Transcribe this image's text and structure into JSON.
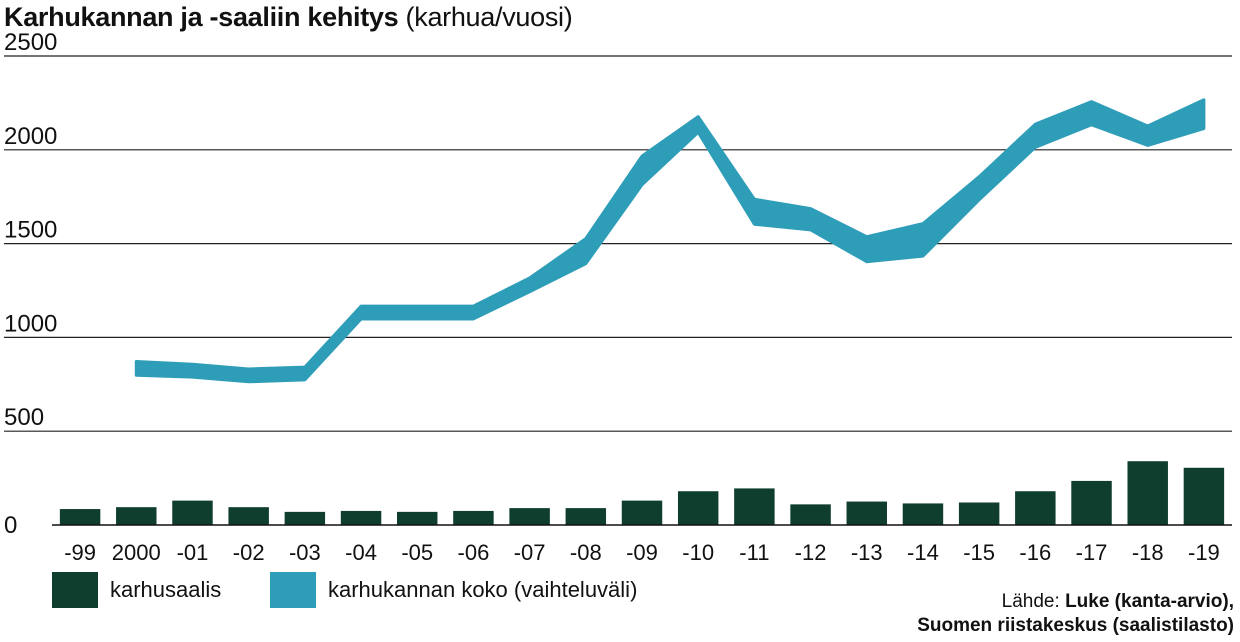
{
  "title": "Karhukannan ja -saaliin kehitys",
  "title_unit": "(karhua/vuosi)",
  "legend": {
    "bars_label": "karhusaalis",
    "band_label": "karhukannan koko (vaihteluväli)"
  },
  "source": {
    "prefix": "Lähde:",
    "line1_bold": "Luke (kanta-arvio),",
    "line2_bold": "Suomen riistakeskus (saalistilasto)"
  },
  "colors": {
    "bars": "#0f3d2e",
    "band": "#2e9db8",
    "grid": "#222222"
  },
  "chart_data": {
    "type": "bar",
    "categories": [
      "-99",
      "2000",
      "-01",
      "-02",
      "-03",
      "-04",
      "-05",
      "-06",
      "-07",
      "-08",
      "-09",
      "-10",
      "-11",
      "-12",
      "-13",
      "-14",
      "-15",
      "-16",
      "-17",
      "-18",
      "-19"
    ],
    "ylim": [
      0,
      2500
    ],
    "yticks": [
      0,
      500,
      1000,
      1500,
      2000,
      2500
    ],
    "grid": true,
    "series": [
      {
        "name": "karhusaalis",
        "type": "bar",
        "values": [
          85,
          95,
          130,
          95,
          70,
          75,
          70,
          75,
          90,
          90,
          130,
          180,
          195,
          110,
          125,
          115,
          120,
          180,
          235,
          340,
          305
        ]
      },
      {
        "name": "karhukannan koko (vaihteluväli)",
        "type": "area",
        "low": [
          null,
          825,
          815,
          790,
          800,
          1125,
          1125,
          1125,
          1270,
          1420,
          1840,
          2120,
          1630,
          1600,
          1430,
          1460,
          1760,
          2040,
          2160,
          2050,
          2140
        ],
        "high": [
          null,
          845,
          830,
          805,
          815,
          1140,
          1140,
          1140,
          1290,
          1500,
          1940,
          2150,
          1710,
          1660,
          1510,
          1580,
          1830,
          2110,
          2230,
          2100,
          2240
        ]
      }
    ]
  }
}
